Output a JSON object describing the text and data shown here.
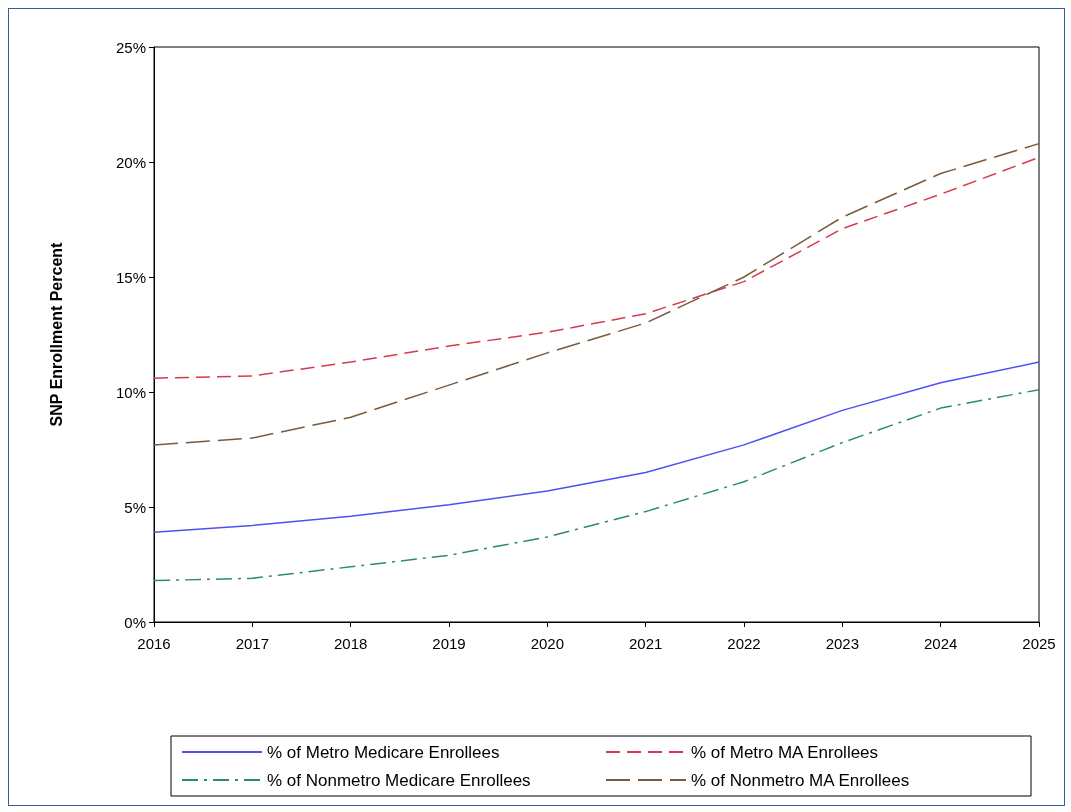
{
  "chart_data": {
    "type": "line",
    "ylabel": "SNP Enrollment Percent",
    "x": [
      2016,
      2017,
      2018,
      2019,
      2020,
      2021,
      2022,
      2023,
      2024,
      2025
    ],
    "xlim": [
      2016,
      2025
    ],
    "xticks": [
      2016,
      2017,
      2018,
      2019,
      2020,
      2021,
      2022,
      2023,
      2024,
      2025
    ],
    "ylim": [
      0,
      25
    ],
    "yticks": [
      {
        "value": 0,
        "label": "0%"
      },
      {
        "value": 5,
        "label": "5%"
      },
      {
        "value": 10,
        "label": "10%"
      },
      {
        "value": 15,
        "label": "15%"
      },
      {
        "value": 20,
        "label": "20%"
      },
      {
        "value": 25,
        "label": "25%"
      }
    ],
    "grid": false,
    "legend": "bottom",
    "marker": "none",
    "series": [
      {
        "name": "% of Metro Medicare Enrollees",
        "color": "#5050f0",
        "line_style": "solid",
        "values": [
          3.9,
          4.2,
          4.6,
          5.1,
          5.7,
          6.5,
          7.7,
          9.2,
          10.4,
          11.3
        ]
      },
      {
        "name": "% of Metro MA Enrollees",
        "color": "#d63a4c",
        "line_style": "dashed",
        "values": [
          10.6,
          10.7,
          11.3,
          12.0,
          12.6,
          13.4,
          14.8,
          17.1,
          18.6,
          20.2
        ]
      },
      {
        "name": "% of Nonmetro Medicare Enrollees",
        "color": "#2a8a7a",
        "line_style": "dashdot",
        "values": [
          1.8,
          1.9,
          2.4,
          2.9,
          3.7,
          4.8,
          6.1,
          7.8,
          9.3,
          10.1
        ]
      },
      {
        "name": "% of Nonmetro MA Enrollees",
        "color": "#7a5a3c",
        "line_style": "longdash",
        "values": [
          7.7,
          8.0,
          8.9,
          10.3,
          11.7,
          13.0,
          15.0,
          17.6,
          19.5,
          20.8
        ]
      }
    ]
  }
}
